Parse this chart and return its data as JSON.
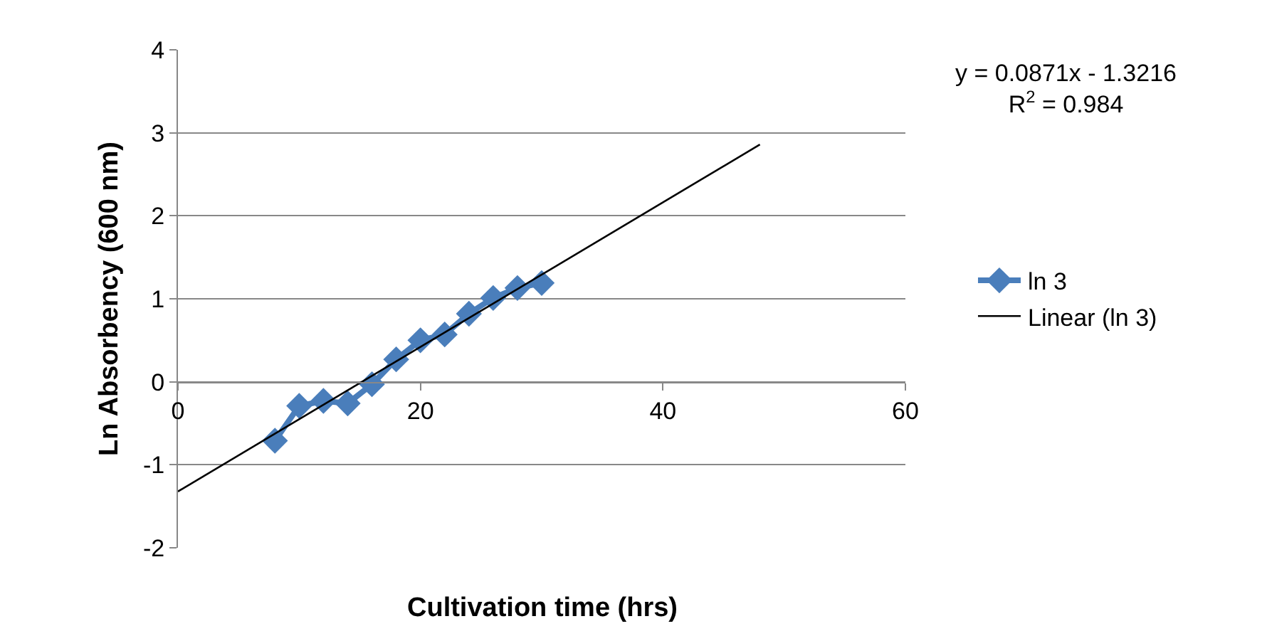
{
  "chart_data": {
    "type": "line",
    "xlabel": "Cultivation time (hrs)",
    "ylabel": "Ln Absorbency (600 nm)",
    "xlim": [
      0,
      60
    ],
    "xticks": [
      0,
      20,
      40,
      60
    ],
    "ylim": [
      -2,
      4
    ],
    "yticks": [
      -2,
      -1,
      0,
      1,
      2,
      3,
      4
    ],
    "grid": "y",
    "legend": "right",
    "marker": "diamond",
    "series": [
      {
        "name": "ln 3",
        "color": "#4a7ebb",
        "x": [
          8,
          10,
          12,
          14,
          16,
          18,
          20,
          22,
          24,
          26,
          28,
          30
        ],
        "values": [
          -0.71,
          -0.29,
          -0.23,
          -0.26,
          -0.03,
          0.27,
          0.5,
          0.57,
          0.82,
          1.01,
          1.13,
          1.19
        ]
      },
      {
        "name": "Linear (ln 3)",
        "color": "#000000",
        "type": "line",
        "marker": "none",
        "x": [
          0,
          48
        ],
        "values": [
          -1.3216,
          2.859
        ]
      }
    ],
    "annotations": [
      "y = 0.0871x - 1.3216\nR$^{2}$ = 0.984"
    ]
  }
}
